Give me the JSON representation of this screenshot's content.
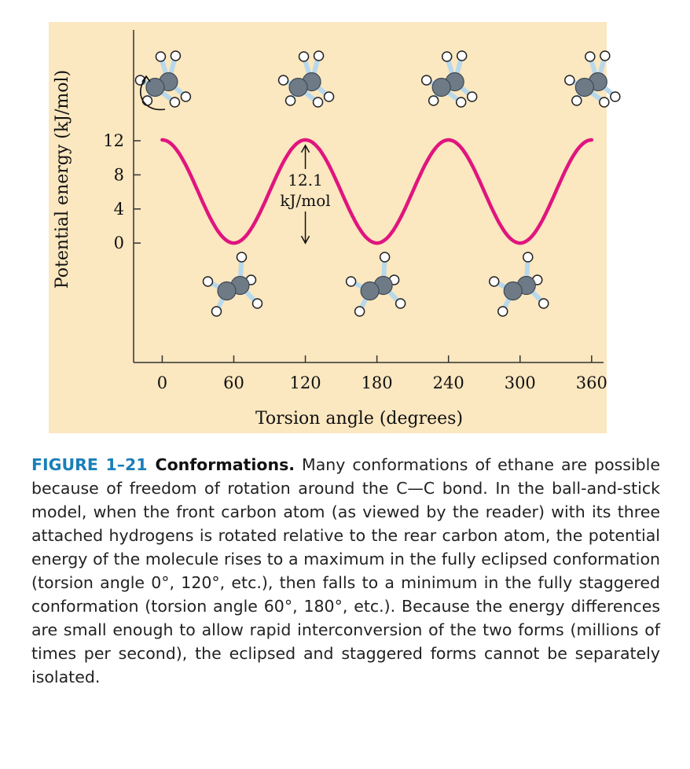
{
  "chart_data": {
    "type": "line",
    "xlabel": "Torsion angle (degrees)",
    "ylabel": "Potential energy (kJ/mol)",
    "x_ticks": [
      0,
      60,
      120,
      180,
      240,
      300,
      360
    ],
    "y_ticks": [
      0,
      4,
      8,
      12
    ],
    "xlim": [
      -24,
      370
    ],
    "ylim": [
      -14,
      25
    ],
    "series": [
      {
        "function": "6.05 * (1 + cos(3*x))",
        "x": [
          0,
          30,
          60,
          90,
          120,
          150,
          180,
          210,
          240,
          270,
          300,
          330,
          360
        ],
        "y": [
          12.1,
          6.05,
          0,
          6.05,
          12.1,
          6.05,
          0,
          6.05,
          12.1,
          6.05,
          0,
          6.05,
          12.1
        ]
      }
    ],
    "annotations": [
      {
        "text_line1": "12.1",
        "text_line2": "kJ/mol",
        "x": 120,
        "y_from": 0,
        "y_to": 12.1
      }
    ],
    "molecule_images": {
      "eclipsed_at_x": [
        0,
        120,
        240,
        360
      ],
      "staggered_at_x": [
        60,
        180,
        300
      ]
    },
    "colors": {
      "background": "#fbe7c0",
      "curve": "#e0157e",
      "axis": "#333333",
      "carbon": "#6e7b87",
      "bond": "#b8d8ec",
      "hydrogen": "#ffffff"
    },
    "grid": false
  },
  "caption": {
    "label": "FIGURE 1–21",
    "heading": "Conformations.",
    "body": "Many conformations of ethane are possible because of freedom of rotation around the C—C bond. In the ball-and-stick model, when the front carbon atom (as viewed by the reader) with its three attached hydrogens is rotated relative to the rear carbon atom, the potential energy of the molecule rises to a maximum in the fully eclipsed conformation (torsion angle 0°, 120°, etc.), then falls to a minimum in the fully staggered conformation (torsion angle 60°, 180°, etc.). Because the energy differences are small enough to allow rapid interconversion of the two forms (millions of times per second), the eclipsed and staggered forms cannot be separately isolated."
  }
}
